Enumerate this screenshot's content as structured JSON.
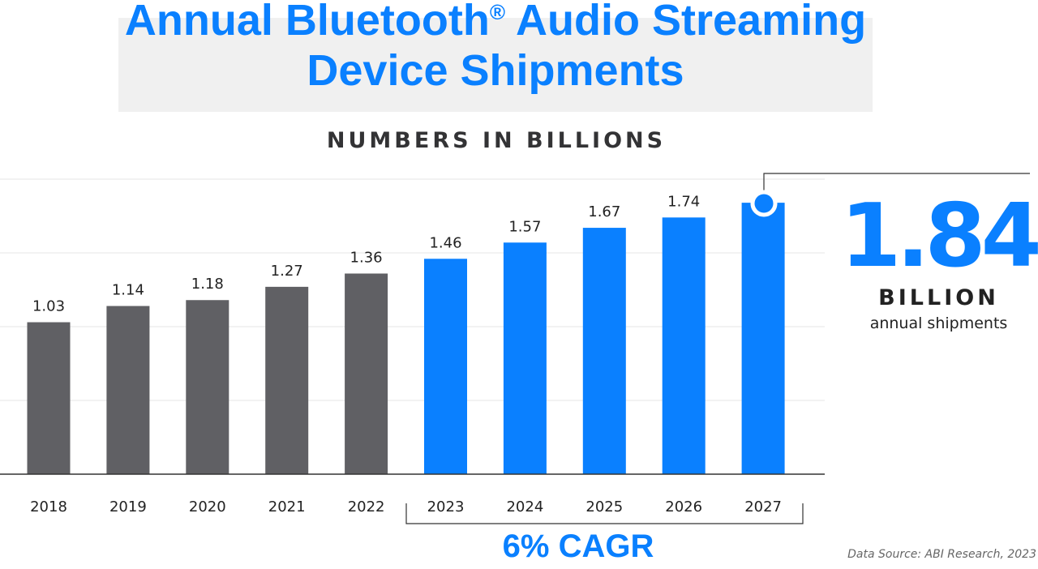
{
  "title_main": "Annual Bluetooth",
  "title_mark": "®",
  "title_rest": " Audio Streaming Device Shipments",
  "chart_data": {
    "type": "bar",
    "title": "Annual Bluetooth® Audio Streaming Device Shipments",
    "subtitle": "NUMBERS IN BILLIONS",
    "categories": [
      "2018",
      "2019",
      "2020",
      "2021",
      "2022",
      "2023",
      "2024",
      "2025",
      "2026",
      "2027"
    ],
    "values": [
      1.03,
      1.14,
      1.18,
      1.27,
      1.36,
      1.46,
      1.57,
      1.67,
      1.74,
      1.84
    ],
    "data_labels": [
      "1.03",
      "1.14",
      "1.18",
      "1.27",
      "1.36",
      "1.46",
      "1.57",
      "1.67",
      "1.74",
      ""
    ],
    "bar_colors": [
      "#606064",
      "#606064",
      "#606064",
      "#606064",
      "#606064",
      "#0a80ff",
      "#0a80ff",
      "#0a80ff",
      "#0a80ff",
      "#0a80ff"
    ],
    "ylim": [
      0,
      2.0
    ],
    "gridlines": true,
    "xlabel": "",
    "ylabel": ""
  },
  "callout": {
    "value": "1.84",
    "unit": "BILLION",
    "description": "annual shipments"
  },
  "cagr_label": "6% CAGR",
  "source": "Data Source: ABI Research, 2023",
  "colors": {
    "accent": "#0a80ff",
    "historical": "#606064",
    "text": "#333335"
  }
}
